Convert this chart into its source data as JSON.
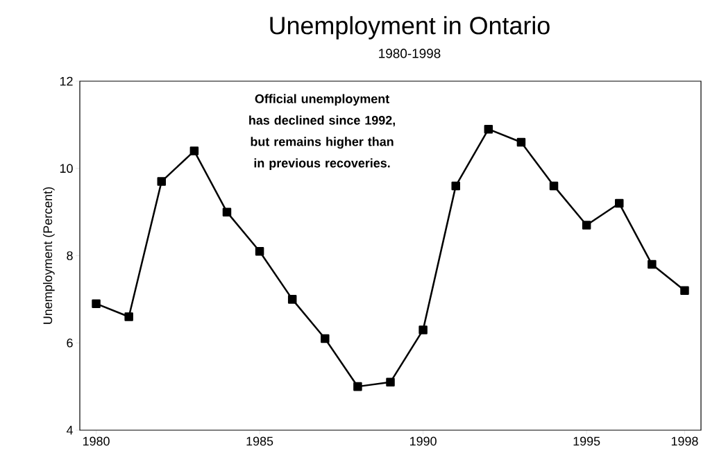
{
  "chart_data": {
    "type": "line",
    "title": "Unemployment in Ontario",
    "subtitle": "1980-1998",
    "ylabel": "Unemployment (Percent)",
    "x": [
      1980,
      1981,
      1982,
      1983,
      1984,
      1985,
      1986,
      1987,
      1988,
      1989,
      1990,
      1991,
      1992,
      1993,
      1994,
      1995,
      1996,
      1997,
      1998
    ],
    "series": [
      {
        "color": "#000000",
        "values": [
          6.9,
          6.6,
          9.7,
          10.4,
          9.0,
          8.1,
          7.0,
          6.1,
          5.0,
          5.1,
          6.3,
          9.6,
          10.9,
          10.6,
          9.6,
          8.7,
          9.2,
          7.8,
          7.2
        ]
      }
    ],
    "xlim": [
      1979.5,
      1998.5
    ],
    "ylim": [
      4,
      12
    ],
    "xticks": [
      1980,
      1985,
      1990,
      1995,
      1998
    ],
    "yticks": [
      4,
      6,
      8,
      10,
      12
    ],
    "annotations": [
      "Official unemployment has declined since 1992, but remains higher than in previous recoveries."
    ],
    "marker": "square",
    "line_style": "solid",
    "grid": false
  }
}
